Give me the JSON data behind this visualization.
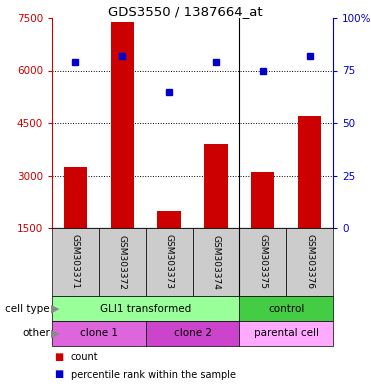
{
  "title": "GDS3550 / 1387664_at",
  "samples": [
    "GSM303371",
    "GSM303372",
    "GSM303373",
    "GSM303374",
    "GSM303375",
    "GSM303376"
  ],
  "counts": [
    3250,
    7400,
    2000,
    3900,
    3100,
    4700
  ],
  "percentile_ranks": [
    79,
    82,
    65,
    79,
    75,
    82
  ],
  "ymin": 1500,
  "ymax": 7500,
  "ytick_vals": [
    1500,
    3000,
    4500,
    6000,
    7500
  ],
  "ytick_labels": [
    "1500",
    "3000",
    "4500",
    "6000",
    "7500"
  ],
  "right_pct_vals": [
    0,
    25,
    50,
    75,
    100
  ],
  "right_pct_labels": [
    "0",
    "25",
    "50",
    "75",
    "100%"
  ],
  "dotted_yticks": [
    3000,
    4500,
    6000
  ],
  "bar_color": "#cc0000",
  "dot_color": "#0000cc",
  "cell_type_groups": [
    {
      "label": "GLI1 transformed",
      "start": 0,
      "end": 4,
      "color": "#99ff99"
    },
    {
      "label": "control",
      "start": 4,
      "end": 6,
      "color": "#44cc44"
    }
  ],
  "other_groups": [
    {
      "label": "clone 1",
      "start": 0,
      "end": 2,
      "color": "#dd66dd"
    },
    {
      "label": "clone 2",
      "start": 2,
      "end": 4,
      "color": "#cc44cc"
    },
    {
      "label": "parental cell",
      "start": 4,
      "end": 6,
      "color": "#ffaaff"
    }
  ],
  "cell_type_label": "cell type",
  "other_label": "other",
  "legend_count_label": "count",
  "legend_pct_label": "percentile rank within the sample",
  "sample_label_bg": "#cccccc",
  "separator_col": 4,
  "n_samples": 6,
  "fig_width": 3.71,
  "fig_height": 3.84,
  "dpi": 100
}
